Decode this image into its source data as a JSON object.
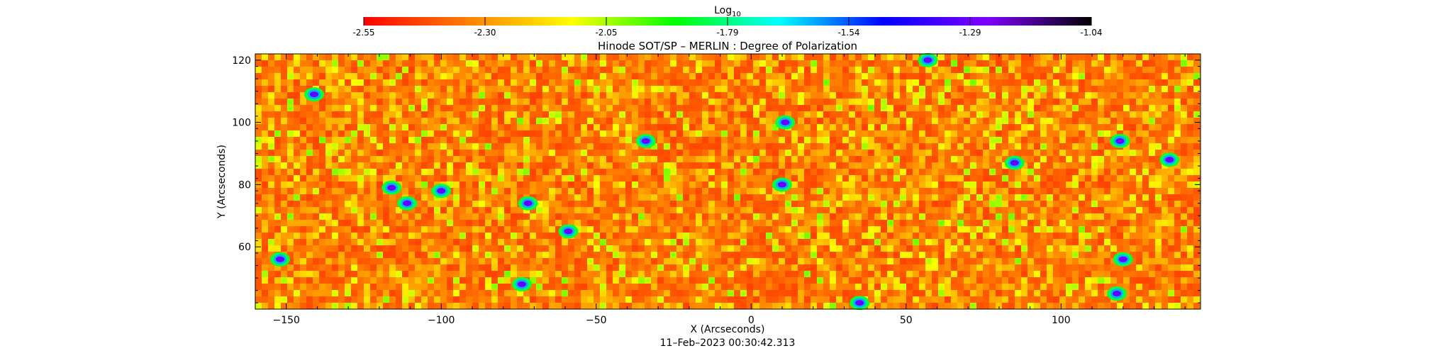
{
  "colorbar": {
    "label_base": "Log",
    "label_sub": "10",
    "tick_labels": [
      "-2.55",
      "-2.30",
      "-2.05",
      "-1.79",
      "-1.54",
      "-1.29",
      "-1.04"
    ],
    "colors": [
      "#ff0000",
      "#ff8000",
      "#ffff00",
      "#00ff00",
      "#00ffff",
      "#0000ff",
      "#8000ff",
      "#000000"
    ]
  },
  "chart_data": {
    "type": "heatmap",
    "title": "Hinode SOT/SP – MERLIN : Degree of Polarization",
    "xlabel": "X (Arcseconds)",
    "ylabel": "Y (Arcseconds)",
    "xlim": [
      -160,
      145
    ],
    "ylim": [
      40,
      122
    ],
    "x_ticks": [
      -150,
      -100,
      -50,
      0,
      50,
      100
    ],
    "y_ticks": [
      60,
      80,
      100,
      120
    ],
    "colorbar_range": [
      -2.55,
      -1.04
    ],
    "colormap": "red-orange-yellow-green-cyan-blue-purple-black",
    "background_range": [
      -2.55,
      -2.1
    ],
    "strong_regions": [
      {
        "x": -141,
        "y": 109
      },
      {
        "x": -116,
        "y": 79
      },
      {
        "x": -111,
        "y": 74
      },
      {
        "x": -100,
        "y": 78
      },
      {
        "x": -72,
        "y": 74
      },
      {
        "x": -59,
        "y": 65
      },
      {
        "x": -74,
        "y": 48
      },
      {
        "x": -152,
        "y": 56
      },
      {
        "x": 10,
        "y": 80
      },
      {
        "x": 11,
        "y": 100
      },
      {
        "x": 57,
        "y": 120
      },
      {
        "x": 85,
        "y": 87
      },
      {
        "x": 119,
        "y": 94
      },
      {
        "x": 135,
        "y": 88
      },
      {
        "x": 35,
        "y": 42
      },
      {
        "x": 120,
        "y": 56
      },
      {
        "x": -34,
        "y": 94
      },
      {
        "x": 118,
        "y": 45
      }
    ],
    "timestamp": "11–Feb–2023 00:30:42.313"
  }
}
